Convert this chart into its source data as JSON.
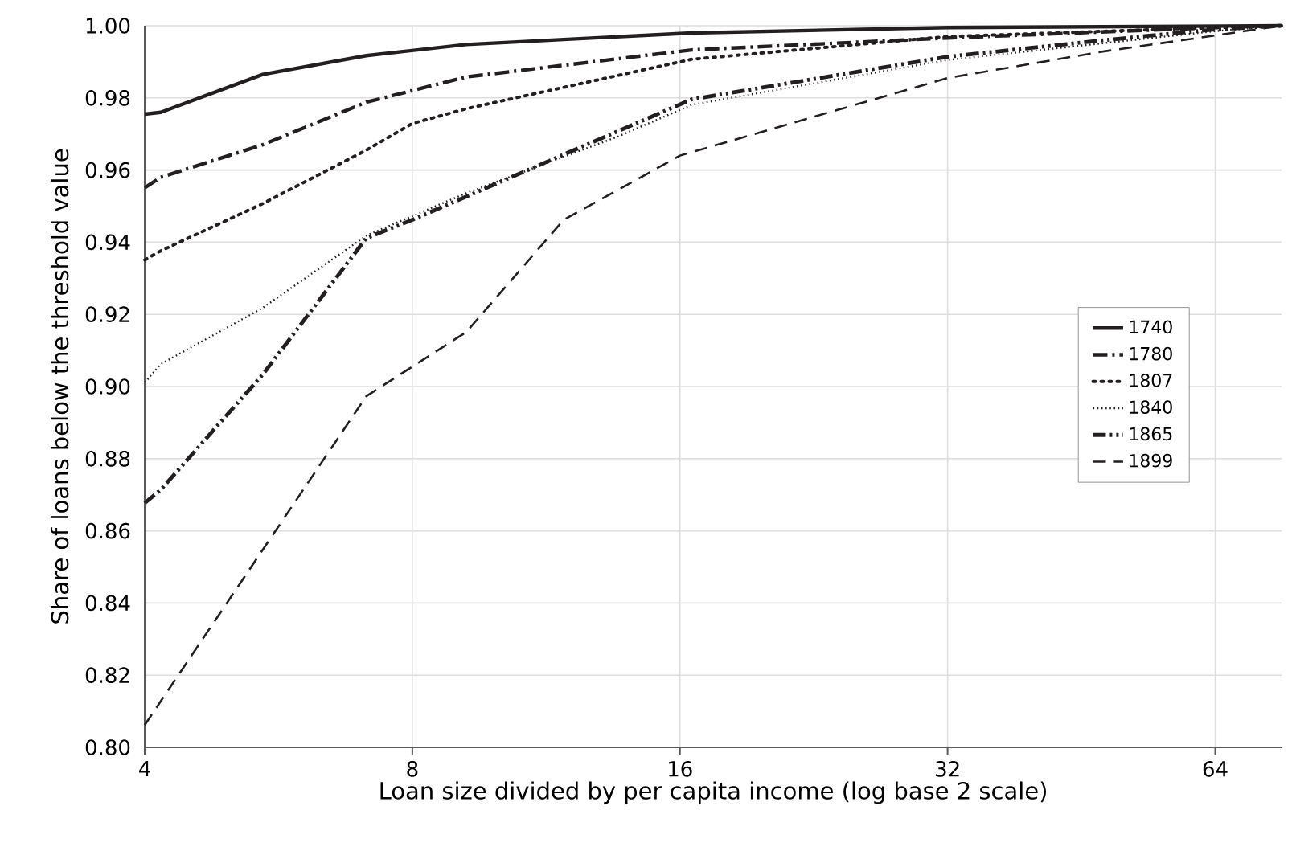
{
  "chart_data": {
    "type": "line",
    "xlabel": "Loan size divided by per capita income (log base 2 scale)",
    "ylabel": "Share of loans below the threshold value",
    "log": "x",
    "xlim": [
      4,
      76
    ],
    "xticks": [
      4,
      8,
      16,
      32,
      64
    ],
    "ylim": [
      0.8,
      1.0
    ],
    "yticks": [
      {
        "value": 0.8,
        "label": "0.80"
      },
      {
        "value": 0.82,
        "label": "0.82"
      },
      {
        "value": 0.84,
        "label": "0.84"
      },
      {
        "value": 0.86,
        "label": "0.86"
      },
      {
        "value": 0.88,
        "label": "0.88"
      },
      {
        "value": 0.9,
        "label": "0.90"
      },
      {
        "value": 0.92,
        "label": "0.92"
      },
      {
        "value": 0.94,
        "label": "0.94"
      },
      {
        "value": 0.96,
        "label": "0.96"
      },
      {
        "value": 0.98,
        "label": "0.98"
      },
      {
        "value": 1.0,
        "label": "1.00"
      }
    ],
    "grid": true,
    "legend": "right",
    "marker": "none",
    "series": [
      {
        "name": "1740",
        "color": "#231f20",
        "line_style": "solid",
        "x": [
          4,
          4.17,
          5.43,
          7.1,
          9.2,
          16.5,
          32,
          76
        ],
        "values": [
          0.9755,
          0.976,
          0.9865,
          0.9917,
          0.9948,
          0.998,
          0.9995,
          1.0
        ]
      },
      {
        "name": "1780",
        "color": "#231f20",
        "line_style": "dashdot",
        "x": [
          4,
          4.17,
          5.43,
          7.1,
          9.2,
          16.5,
          32,
          64,
          76
        ],
        "values": [
          0.9551,
          0.958,
          0.967,
          0.9788,
          0.9858,
          0.9933,
          0.9966,
          0.9995,
          1.0
        ]
      },
      {
        "name": "1807",
        "color": "#231f20",
        "line_style": "dotted",
        "x": [
          4,
          4.17,
          5.43,
          7.1,
          8,
          9.2,
          16.5,
          32,
          64,
          76
        ],
        "values": [
          0.9351,
          0.9376,
          0.9507,
          0.9655,
          0.9729,
          0.977,
          0.9907,
          0.997,
          0.9995,
          1.0
        ]
      },
      {
        "name": "1840",
        "color": "#231f20",
        "line_style": "densely dotted",
        "x": [
          4,
          4.17,
          5.43,
          7.1,
          9.2,
          13.6,
          16.5,
          32,
          64,
          76
        ],
        "values": [
          0.9011,
          0.9062,
          0.9218,
          0.9418,
          0.9536,
          0.9692,
          0.9781,
          0.9905,
          0.9985,
          1.0
        ]
      },
      {
        "name": "1865",
        "color": "#231f20",
        "line_style": "dashdotdot",
        "x": [
          4,
          4.17,
          5.43,
          7.1,
          8,
          16.5,
          32,
          48,
          64,
          76
        ],
        "values": [
          0.8677,
          0.8714,
          0.9033,
          0.9411,
          0.9462,
          0.9796,
          0.9914,
          0.996,
          0.999,
          1.0
        ]
      },
      {
        "name": "1899",
        "color": "#231f20",
        "line_style": "dashed",
        "x": [
          4,
          7.1,
          9.2,
          11.84,
          16,
          32,
          48,
          64,
          76
        ],
        "values": [
          0.8062,
          0.8973,
          0.9151,
          0.9462,
          0.964,
          0.9855,
          0.9929,
          0.9973,
          1.0
        ]
      }
    ]
  }
}
